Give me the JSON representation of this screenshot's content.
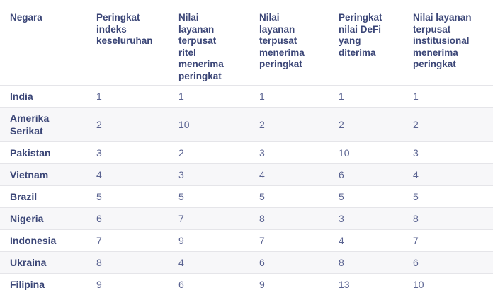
{
  "colors": {
    "header_text": "#3b4677",
    "value_text": "#5a6391",
    "stripe_bg": "#f7f7f9",
    "divider": "#e5e5e9",
    "page_bg": "#ffffff"
  },
  "chart_data": {
    "type": "table",
    "columns": [
      {
        "key": "country",
        "label": "Negara",
        "label_lines": [
          "Negara"
        ]
      },
      {
        "key": "overall-index-rank",
        "label": "Peringkat indeks keseluruhan",
        "label_lines": [
          "Peringkat",
          "indeks",
          "keseluruhan"
        ]
      },
      {
        "key": "retail-csv-rank",
        "label": "Nilai layanan terpusat ritel menerima peringkat",
        "label_lines": [
          "Nilai",
          "layanan",
          "terpusat",
          "ritel",
          "menerima",
          "peringkat"
        ]
      },
      {
        "key": "csv-rank",
        "label": "Nilai layanan terpusat menerima peringkat",
        "label_lines": [
          "Nilai",
          "layanan",
          "terpusat",
          "menerima",
          "peringkat"
        ]
      },
      {
        "key": "defi-rank",
        "label": "Peringkat nilai DeFi yang diterima",
        "label_lines": [
          "Peringkat",
          "nilai DeFi",
          "yang",
          "diterima"
        ]
      },
      {
        "key": "institutional-csv-rank",
        "label": "Nilai layanan terpusat institusional menerima peringkat",
        "label_lines": [
          "Nilai layanan",
          "terpusat",
          "institusional",
          "menerima",
          "peringkat"
        ]
      }
    ],
    "rows": [
      {
        "country": "India",
        "ranks": [
          "1",
          "1",
          "1",
          "1",
          "1"
        ]
      },
      {
        "country": "Amerika Serikat",
        "ranks": [
          "2",
          "10",
          "2",
          "2",
          "2"
        ]
      },
      {
        "country": "Pakistan",
        "ranks": [
          "3",
          "2",
          "3",
          "10",
          "3"
        ]
      },
      {
        "country": "Vietnam",
        "ranks": [
          "4",
          "3",
          "4",
          "6",
          "4"
        ]
      },
      {
        "country": "Brazil",
        "ranks": [
          "5",
          "5",
          "5",
          "5",
          "5"
        ]
      },
      {
        "country": "Nigeria",
        "ranks": [
          "6",
          "7",
          "8",
          "3",
          "8"
        ]
      },
      {
        "country": "Indonesia",
        "ranks": [
          "7",
          "9",
          "7",
          "4",
          "7"
        ]
      },
      {
        "country": "Ukraina",
        "ranks": [
          "8",
          "4",
          "6",
          "8",
          "6"
        ]
      },
      {
        "country": "Filipina",
        "ranks": [
          "9",
          "6",
          "9",
          "13",
          "10"
        ]
      }
    ]
  }
}
